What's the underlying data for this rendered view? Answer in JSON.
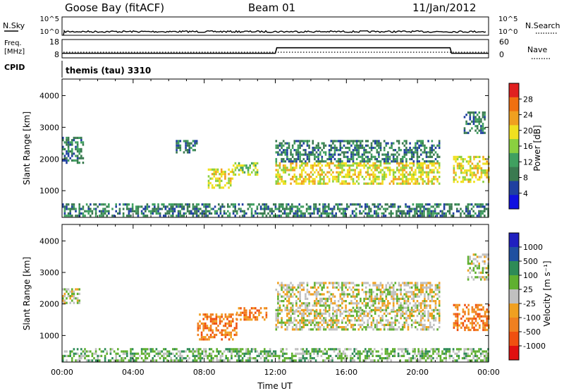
{
  "header": {
    "station": "Goose Bay (fitACF)",
    "beam": "Beam 01",
    "date": "11/Jan/2012"
  },
  "noise_panel": {
    "left_label": "N.Sky",
    "right_label": "N.Search",
    "left_ticks": [
      "10^5",
      "10^0"
    ],
    "right_ticks": [
      "10^5",
      "10^0"
    ]
  },
  "freq_panel": {
    "left_label_1": "Freq.",
    "left_label_2": "[MHz]",
    "left_ticks": [
      "18",
      "8"
    ],
    "right_label": "Nave",
    "right_ticks": [
      "60",
      "0"
    ]
  },
  "cpid": {
    "label": "CPID",
    "value": "themis (tau) 3310"
  },
  "power_panel": {
    "ylabel": "Slant Range [km]",
    "yticks": [
      "4000",
      "3000",
      "2000",
      "1000"
    ],
    "colorbar_label": "Power [dB]",
    "colorbar_ticks": [
      "28",
      "24",
      "20",
      "16",
      "12",
      "8",
      "4"
    ]
  },
  "velocity_panel": {
    "ylabel": "Slant Range [km]",
    "yticks": [
      "4000",
      "3000",
      "2000",
      "1000"
    ],
    "colorbar_label": "Velocity [m s⁻¹]",
    "colorbar_ticks": [
      "1000",
      "500",
      "100",
      "25",
      "-25",
      "-100",
      "-500",
      "-1000"
    ]
  },
  "xaxis": {
    "label": "Time UT",
    "ticks": [
      "00:00",
      "04:00",
      "08:00",
      "12:00",
      "16:00",
      "20:00",
      "00:00"
    ]
  },
  "colors": {
    "power_scale": [
      "#1010e0",
      "#2040a0",
      "#3a7a50",
      "#40a060",
      "#8ad040",
      "#f0e020",
      "#f0a020",
      "#f07010",
      "#e02020"
    ],
    "velocity_scale": [
      "#e01010",
      "#f05010",
      "#f08020",
      "#f0a020",
      "#c0c0c0",
      "#60b030",
      "#2e8b57",
      "#2050a0",
      "#2020c0"
    ]
  },
  "chart_data": [
    {
      "type": "line",
      "name": "noise",
      "x": [
        "00:00",
        "04:00",
        "08:00",
        "12:00",
        "16:00",
        "20:00",
        "24:00"
      ],
      "series": [
        {
          "values": [
            1.0,
            1.0,
            1.0,
            1.0,
            1.0,
            1.0,
            1.0
          ]
        }
      ],
      "ylim": [
        0,
        5
      ]
    },
    {
      "type": "line",
      "name": "frequency",
      "x": [
        "00:00",
        "12:00",
        "12:05",
        "21:50",
        "21:55",
        "24:00"
      ],
      "series": [
        {
          "values": [
            10.5,
            10.5,
            13.5,
            13.5,
            10.5,
            10.5
          ]
        }
      ],
      "ylim": [
        8,
        18
      ]
    },
    {
      "type": "heatmap",
      "name": "power",
      "xlim": [
        0,
        24
      ],
      "ylim": [
        180,
        4500
      ],
      "ylabel": "Slant Range [km]",
      "xlabel": "Time UT",
      "regions": [
        {
          "t": [
            0.0,
            1.2
          ],
          "r": [
            1900,
            2700
          ],
          "level": 2
        },
        {
          "t": [
            0.0,
            24.0
          ],
          "r": [
            200,
            600
          ],
          "level": 2
        },
        {
          "t": [
            6.4,
            7.6
          ],
          "r": [
            2200,
            2600
          ],
          "level": 2
        },
        {
          "t": [
            8.2,
            9.6
          ],
          "r": [
            1100,
            1700
          ],
          "level": 5
        },
        {
          "t": [
            9.6,
            11.0
          ],
          "r": [
            1500,
            1900
          ],
          "level": 4
        },
        {
          "t": [
            12.0,
            21.2
          ],
          "r": [
            1200,
            1900
          ],
          "level": 5
        },
        {
          "t": [
            12.0,
            21.2
          ],
          "r": [
            1900,
            2600
          ],
          "level": 2
        },
        {
          "t": [
            22.0,
            24.0
          ],
          "r": [
            1300,
            2100
          ],
          "level": 5
        },
        {
          "t": [
            22.6,
            23.8
          ],
          "r": [
            2800,
            3500
          ],
          "level": 2
        }
      ]
    },
    {
      "type": "heatmap",
      "name": "velocity",
      "xlim": [
        0,
        24
      ],
      "ylim": [
        180,
        4500
      ],
      "ylabel": "Slant Range [km]",
      "xlabel": "Time UT",
      "regions": [
        {
          "t": [
            0.0,
            1.0
          ],
          "r": [
            2000,
            2500
          ],
          "level": 4
        },
        {
          "t": [
            0.0,
            24.0
          ],
          "r": [
            200,
            600
          ],
          "level": 5
        },
        {
          "t": [
            7.6,
            9.8
          ],
          "r": [
            900,
            1700
          ],
          "level": 2
        },
        {
          "t": [
            9.8,
            11.6
          ],
          "r": [
            1500,
            1900
          ],
          "level": 2
        },
        {
          "t": [
            12.0,
            21.2
          ],
          "r": [
            1200,
            1800
          ],
          "level": 4
        },
        {
          "t": [
            12.0,
            21.2
          ],
          "r": [
            1800,
            2700
          ],
          "level": 4
        },
        {
          "t": [
            22.0,
            24.0
          ],
          "r": [
            1200,
            2000
          ],
          "level": 2
        },
        {
          "t": [
            22.8,
            24.0
          ],
          "r": [
            2800,
            3600
          ],
          "level": 4
        }
      ]
    }
  ]
}
